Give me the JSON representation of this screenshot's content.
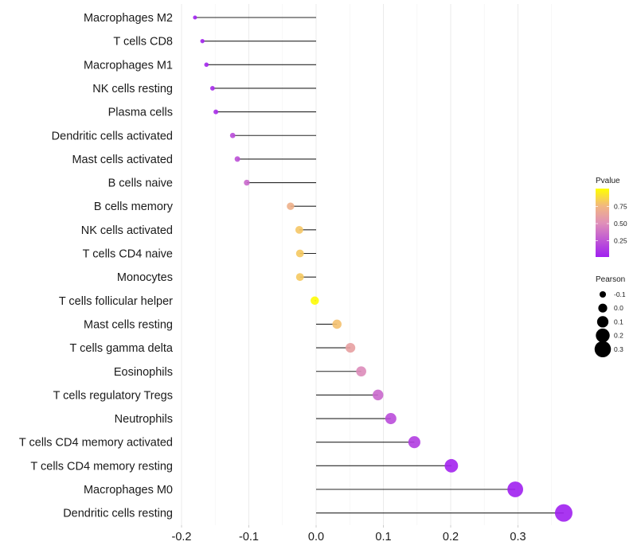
{
  "chart_data": {
    "type": "lollipop",
    "title": "",
    "xlabel": "",
    "ylabel": "",
    "xlim": [
      -0.2,
      0.37
    ],
    "x_ticks": [
      -0.2,
      -0.1,
      0.0,
      0.1,
      0.2,
      0.3
    ],
    "x_tick_labels": [
      "-0.2",
      "-0.1",
      "0.0",
      "0.1",
      "0.2",
      "0.3"
    ],
    "grid": true,
    "categories": [
      "Macrophages M2",
      "T cells CD8",
      "Macrophages M1",
      "NK cells resting",
      "Plasma cells",
      "Dendritic cells activated",
      "Mast cells activated",
      "B cells naive",
      "B cells memory",
      "NK cells activated",
      "T cells CD4 naive",
      "Monocytes",
      "T cells follicular helper",
      "Mast cells resting",
      "T cells gamma delta",
      "Eosinophils",
      "T cells regulatory  Tregs",
      "Neutrophils",
      "T cells CD4 memory activated",
      "T cells CD4 memory resting",
      "Macrophages M0",
      "Dendritic cells resting"
    ],
    "series": [
      {
        "name": "Pearson",
        "values": [
          -0.18,
          -0.169,
          -0.163,
          -0.154,
          -0.149,
          -0.124,
          -0.117,
          -0.103,
          -0.038,
          -0.025,
          -0.024,
          -0.024,
          -0.002,
          0.031,
          0.051,
          0.067,
          0.092,
          0.111,
          0.146,
          0.201,
          0.296,
          0.368
        ]
      },
      {
        "name": "Pvalue",
        "values": [
          0.01,
          0.02,
          0.03,
          0.05,
          0.06,
          0.2,
          0.22,
          0.32,
          0.7,
          0.8,
          0.81,
          0.81,
          0.99,
          0.78,
          0.6,
          0.48,
          0.32,
          0.2,
          0.13,
          0.02,
          0.0005,
          2e-05
        ]
      }
    ],
    "legend": {
      "position": "right",
      "color": {
        "title": "Pvalue",
        "range": [
          0,
          1
        ],
        "breaks": [
          0.25,
          0.5,
          0.75
        ],
        "labels": [
          "0.25",
          "0.50",
          "0.75"
        ],
        "low_color": "#a020f0",
        "mid_color": "#e79cb0",
        "high_color": "#ffff00"
      },
      "size": {
        "title": "Pearson",
        "breaks": [
          -0.1,
          0.0,
          0.1,
          0.2,
          0.3
        ],
        "labels": [
          "-0.1",
          "0.0",
          "0.1",
          "0.2",
          "0.3"
        ]
      }
    },
    "segment_color": "#000000"
  }
}
